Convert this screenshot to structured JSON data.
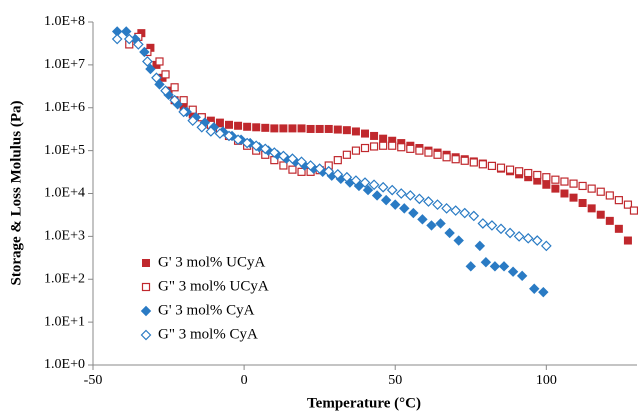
{
  "chart_data": {
    "type": "scatter",
    "x_label": "Temperature (°C)",
    "y_label": "Storage & Loss Molulus (Pa)",
    "xlim": [
      -50,
      130
    ],
    "xticks": [
      -50,
      0,
      50,
      100
    ],
    "ylim": [
      1,
      100000000
    ],
    "ylog": true,
    "yticks": [
      {
        "value": 1,
        "label": "1.0E+0"
      },
      {
        "value": 10,
        "label": "1.0E+1"
      },
      {
        "value": 100,
        "label": "1.0E+2"
      },
      {
        "value": 1000,
        "label": "1.0E+3"
      },
      {
        "value": 10000,
        "label": "1.0E+4"
      },
      {
        "value": 100000,
        "label": "1.0E+5"
      },
      {
        "value": 1000000,
        "label": "1.0E+6"
      },
      {
        "value": 10000000,
        "label": "1.0E+7"
      },
      {
        "value": 100000000,
        "label": "1.0E+8"
      }
    ],
    "legend": "lower left",
    "series": [
      {
        "name": "G' 3 mol% UCyA",
        "color": "#c0282d",
        "marker": "square",
        "filled": true,
        "x": [
          -34,
          -31,
          -29,
          -27,
          -25,
          -23,
          -20,
          -17,
          -14,
          -11,
          -8,
          -5,
          -2,
          1,
          4,
          7,
          10,
          13,
          16,
          19,
          22,
          25,
          28,
          31,
          34,
          37,
          40,
          43,
          46,
          49,
          52,
          55,
          58,
          61,
          64,
          67,
          70,
          73,
          76,
          79,
          82,
          85,
          88,
          91,
          94,
          97,
          100,
          103,
          106,
          109,
          112,
          115,
          118,
          121,
          124,
          127
        ],
        "values": [
          55000000,
          25000000,
          10000000,
          5000000,
          2500000,
          1500000,
          1000000,
          700000,
          600000,
          500000,
          450000,
          400000,
          380000,
          360000,
          350000,
          340000,
          330000,
          330000,
          330000,
          330000,
          320000,
          320000,
          320000,
          310000,
          300000,
          280000,
          250000,
          220000,
          190000,
          170000,
          150000,
          130000,
          115000,
          100000,
          90000,
          80000,
          70000,
          63000,
          56000,
          50000,
          44000,
          38000,
          33000,
          28000,
          24000,
          20000,
          16000,
          13000,
          10000,
          8000,
          6000,
          4500,
          3200,
          2300,
          1500,
          800
        ]
      },
      {
        "name": "G\" 3 mol% UCyA",
        "color": "#c0282d",
        "marker": "square",
        "filled": false,
        "x": [
          -38,
          -35,
          -32,
          -28,
          -26,
          -23,
          -20,
          -17,
          -14,
          -11,
          -8,
          -5,
          -2,
          1,
          4,
          7,
          10,
          13,
          16,
          19,
          22,
          25,
          28,
          31,
          34,
          37,
          40,
          43,
          46,
          49,
          52,
          55,
          58,
          61,
          64,
          67,
          70,
          73,
          76,
          79,
          82,
          85,
          88,
          91,
          94,
          97,
          100,
          103,
          106,
          109,
          112,
          115,
          118,
          121,
          124,
          127,
          129
        ],
        "values": [
          30000000,
          45000000,
          20000000,
          12000000,
          6000000,
          3000000,
          1500000,
          900000,
          600000,
          400000,
          300000,
          220000,
          170000,
          130000,
          100000,
          80000,
          60000,
          45000,
          36000,
          32000,
          32000,
          35000,
          45000,
          60000,
          80000,
          100000,
          115000,
          125000,
          130000,
          130000,
          120000,
          110000,
          100000,
          90000,
          80000,
          70000,
          63000,
          58000,
          53000,
          48000,
          44000,
          40000,
          36000,
          33000,
          30000,
          27000,
          24000,
          21000,
          19000,
          17000,
          15000,
          13000,
          11000,
          9000,
          7000,
          5500,
          4000
        ]
      },
      {
        "name": "G' 3 mol% CyA",
        "color": "#2a7bc4",
        "marker": "diamond",
        "filled": true,
        "x": [
          -42,
          -39,
          -36,
          -33,
          -31,
          -28,
          -25,
          -22,
          -19,
          -16,
          -13,
          -10,
          -7,
          -4,
          -1,
          2,
          5,
          8,
          11,
          14,
          17,
          20,
          23,
          26,
          29,
          32,
          35,
          38,
          41,
          44,
          47,
          50,
          53,
          56,
          59,
          62,
          65,
          68,
          71,
          75,
          78,
          80,
          83,
          86,
          89,
          92,
          96,
          99
        ],
        "values": [
          60000000,
          60000000,
          40000000,
          20000000,
          8000000,
          3500000,
          2000000,
          1200000,
          800000,
          600000,
          450000,
          350000,
          280000,
          220000,
          180000,
          150000,
          120000,
          100000,
          80000,
          65000,
          55000,
          45000,
          38000,
          32000,
          26000,
          22000,
          18000,
          15000,
          12000,
          9000,
          7000,
          5500,
          4500,
          3500,
          2500,
          1800,
          2000,
          1200,
          800,
          200,
          600,
          250,
          200,
          200,
          150,
          120,
          60,
          50
        ]
      },
      {
        "name": "G\" 3 mol% CyA",
        "color": "#2a7bc4",
        "marker": "diamond",
        "filled": false,
        "x": [
          -42,
          -38,
          -35,
          -32,
          -29,
          -26,
          -23,
          -20,
          -17,
          -14,
          -11,
          -8,
          -5,
          -2,
          1,
          4,
          7,
          10,
          13,
          16,
          19,
          22,
          25,
          28,
          31,
          34,
          37,
          40,
          43,
          46,
          49,
          52,
          55,
          58,
          61,
          64,
          67,
          70,
          73,
          76,
          79,
          82,
          85,
          88,
          91,
          94,
          97,
          100
        ],
        "values": [
          40000000,
          40000000,
          30000000,
          12000000,
          5000000,
          2500000,
          1500000,
          800000,
          500000,
          350000,
          280000,
          250000,
          220000,
          180000,
          150000,
          130000,
          110000,
          90000,
          75000,
          65000,
          55000,
          45000,
          38000,
          33000,
          28000,
          24000,
          20000,
          18000,
          16000,
          14000,
          12000,
          10000,
          9000,
          7500,
          6500,
          5500,
          4500,
          4000,
          3500,
          3000,
          2000,
          1800,
          1500,
          1200,
          1000,
          900,
          800,
          600
        ]
      }
    ]
  }
}
